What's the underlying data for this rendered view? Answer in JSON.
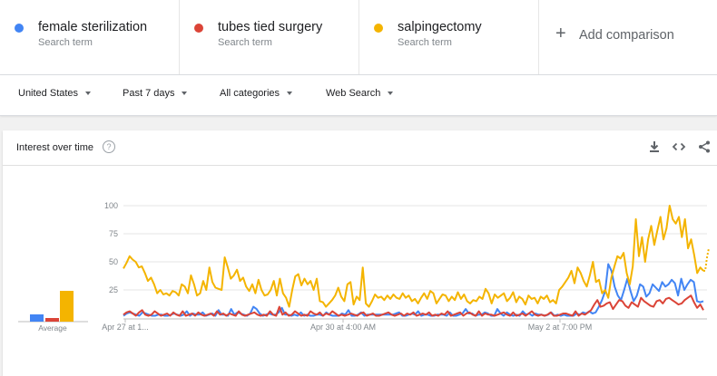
{
  "terms": [
    {
      "name": "female sterilization",
      "sub": "Search term",
      "color": "#4285f4"
    },
    {
      "name": "tubes tied surgery",
      "sub": "Search term",
      "color": "#db4437"
    },
    {
      "name": "salpingectomy",
      "sub": "Search term",
      "color": "#f4b400"
    }
  ],
  "add_comparison": {
    "label": "Add comparison",
    "icon": "plus-icon"
  },
  "filters": {
    "region": "United States",
    "time": "Past 7 days",
    "category": "All categories",
    "search_type": "Web Search"
  },
  "card": {
    "title": "Interest over time",
    "help_icon": "?",
    "icons": [
      "download-icon",
      "embed-icon",
      "share-icon"
    ]
  },
  "chart_data": {
    "type": "line",
    "title": "",
    "ylim": [
      0,
      100
    ],
    "yticks": [
      25,
      50,
      75,
      100
    ],
    "xticks": [
      "Apr 27 at 1...",
      "Apr 30 at 4:00 AM",
      "May 2 at 7:00 PM"
    ],
    "average": {
      "label": "Average",
      "values": [
        8,
        4,
        34
      ]
    },
    "series": [
      {
        "name": "female sterilization",
        "color": "#4285f4",
        "values": [
          2,
          4,
          5,
          4,
          3,
          2,
          5,
          4,
          3,
          2,
          2,
          3,
          3,
          2,
          2,
          3,
          4,
          3,
          2,
          3,
          6,
          2,
          4,
          3,
          3,
          5,
          2,
          3,
          4,
          2,
          7,
          3,
          3,
          2,
          8,
          3,
          5,
          4,
          3,
          2,
          4,
          10,
          8,
          4,
          2,
          3,
          4,
          3,
          3,
          5,
          9,
          3,
          3,
          2,
          3,
          2,
          5,
          2,
          3,
          2,
          2,
          3,
          3,
          2,
          5,
          3,
          2,
          2,
          2,
          4,
          3,
          7,
          2,
          2,
          3,
          5,
          2,
          3,
          3,
          3,
          3,
          3,
          3,
          3,
          3,
          3,
          4,
          5,
          2,
          2,
          3,
          4,
          3,
          6,
          2,
          3,
          3,
          2,
          2,
          3,
          3,
          3,
          2,
          5,
          2,
          2,
          3,
          4,
          8,
          4,
          4,
          2,
          3,
          3,
          5,
          4,
          2,
          2,
          8,
          4,
          2,
          5,
          3,
          2,
          3,
          2,
          6,
          3,
          4,
          2,
          4,
          3,
          3,
          2,
          3,
          5,
          2,
          3,
          2,
          3,
          2,
          2,
          2,
          4,
          3,
          5,
          4,
          6,
          4,
          5,
          10,
          16,
          24,
          48,
          42,
          28,
          20,
          16,
          25,
          35,
          24,
          15,
          20,
          30,
          28,
          19,
          22,
          30,
          27,
          24,
          32,
          28,
          30,
          34,
          31,
          20,
          35,
          25,
          30,
          34,
          32,
          15,
          14,
          15
        ]
      },
      {
        "name": "tubes tied surgery",
        "color": "#db4437",
        "values": [
          3,
          5,
          6,
          4,
          2,
          5,
          7,
          3,
          2,
          3,
          6,
          4,
          2,
          3,
          4,
          2,
          5,
          3,
          2,
          6,
          2,
          3,
          4,
          2,
          5,
          3,
          2,
          3,
          4,
          2,
          6,
          3,
          4,
          2,
          4,
          3,
          2,
          6,
          3,
          2,
          3,
          4,
          5,
          3,
          2,
          3,
          2,
          6,
          3,
          2,
          10,
          3,
          5,
          2,
          3,
          6,
          4,
          2,
          3,
          2,
          6,
          4,
          3,
          5,
          2,
          4,
          3,
          6,
          4,
          2,
          3,
          2,
          3,
          4,
          3,
          2,
          4,
          5,
          2,
          3,
          4,
          2,
          2,
          3,
          4,
          5,
          3,
          2,
          3,
          4,
          2,
          4,
          3,
          5,
          2,
          3,
          4,
          3,
          5,
          2,
          3,
          2,
          4,
          3,
          6,
          2,
          3,
          4,
          5,
          2,
          4,
          5,
          3,
          2,
          6,
          2,
          4,
          3,
          3,
          2,
          3,
          4,
          5,
          3,
          2,
          5,
          2,
          3,
          4,
          2,
          4,
          6,
          3,
          2,
          3,
          2,
          3,
          5,
          2,
          2,
          3,
          4,
          4,
          3,
          2,
          6,
          2,
          4,
          3,
          5,
          7,
          12,
          16,
          10,
          11,
          13,
          14,
          8,
          12,
          16,
          15,
          11,
          9,
          14,
          12,
          10,
          18,
          15,
          13,
          11,
          10,
          15,
          16,
          13,
          17,
          18,
          16,
          14,
          12,
          13,
          16,
          18,
          20,
          14,
          9,
          12,
          7
        ]
      },
      {
        "name": "salpingectomy",
        "color": "#f4b400",
        "values": [
          44,
          49,
          55,
          52,
          50,
          45,
          46,
          40,
          33,
          36,
          30,
          22,
          25,
          21,
          22,
          20,
          24,
          23,
          20,
          30,
          28,
          22,
          38,
          30,
          20,
          22,
          33,
          25,
          45,
          32,
          27,
          26,
          25,
          54,
          45,
          35,
          38,
          43,
          33,
          36,
          28,
          24,
          30,
          22,
          34,
          25,
          20,
          21,
          25,
          33,
          20,
          35,
          22,
          18,
          10,
          25,
          37,
          39,
          29,
          35,
          30,
          33,
          25,
          35,
          15,
          14,
          10,
          13,
          16,
          20,
          27,
          19,
          15,
          30,
          32,
          12,
          19,
          16,
          45,
          13,
          10,
          15,
          21,
          18,
          19,
          16,
          20,
          17,
          21,
          18,
          17,
          22,
          18,
          20,
          15,
          17,
          13,
          18,
          22,
          17,
          24,
          22,
          13,
          17,
          21,
          20,
          15,
          19,
          16,
          23,
          17,
          21,
          15,
          13,
          16,
          15,
          19,
          17,
          26,
          22,
          13,
          21,
          18,
          20,
          22,
          15,
          18,
          23,
          14,
          19,
          17,
          12,
          20,
          17,
          18,
          13,
          19,
          17,
          20,
          14,
          16,
          13,
          25,
          28,
          32,
          36,
          42,
          31,
          45,
          40,
          33,
          28,
          38,
          50,
          32,
          34,
          22,
          25,
          18,
          36,
          46,
          55,
          53,
          58,
          40,
          30,
          46,
          88,
          55,
          72,
          50,
          70,
          82,
          65,
          78,
          90,
          70,
          80,
          100,
          88,
          84,
          90,
          72,
          88,
          62,
          70,
          56,
          40,
          45,
          42
        ]
      }
    ],
    "forecast_tail": {
      "series": "salpingectomy",
      "values": [
        42,
        54,
        62
      ]
    }
  }
}
